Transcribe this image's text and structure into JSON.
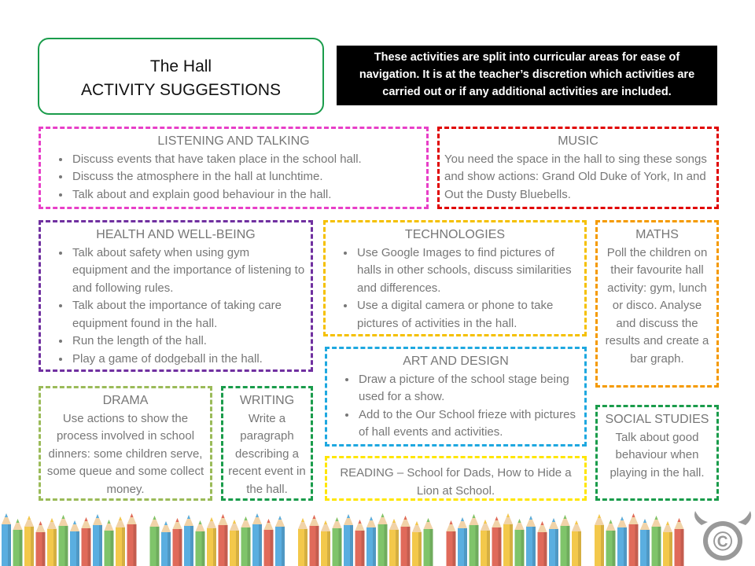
{
  "header": {
    "title": "The Hall",
    "subtitle": "ACTIVITY SUGGESTIONS",
    "note": "These activities are split into curricular areas for ease of navigation. It is at the teacher’s discretion which activities are carried out or if any additional activities are included."
  },
  "sections": [
    {
      "title": "LISTENING AND TALKING",
      "items": [
        "Discuss events that have taken place in the school hall.",
        "Discuss the atmosphere in the hall at lunchtime.",
        "Talk about and explain good behaviour in the hall."
      ]
    },
    {
      "title": "MUSIC",
      "text": "You need the space in the hall to sing these songs and show actions: Grand Old Duke of York, In and Out the Dusty Bluebells."
    },
    {
      "title": "HEALTH AND WELL-BEING",
      "items": [
        "Talk about safety when using gym equipment and the importance of listening to and following rules.",
        "Talk about the importance of taking care equipment found in the hall.",
        "Run the length of the hall.",
        "Play a game of dodgeball in the hall."
      ]
    },
    {
      "title": "TECHNOLOGIES",
      "items": [
        "Use Google Images to find pictures of halls in other schools, discuss similarities and differences.",
        "Use a digital camera or phone to take pictures of activities in the hall."
      ]
    },
    {
      "title": "MATHS",
      "text": "Poll the children on their favourite hall activity: gym, lunch or disco. Analyse and discuss the results and create a bar graph."
    },
    {
      "title": "ART AND DESIGN",
      "items": [
        "Draw a picture of the school stage being used for a show.",
        "Add to the Our School frieze with pictures of hall events and activities."
      ]
    },
    {
      "title": "DRAMA",
      "text": "Use actions to show the process involved in school dinners: some children serve, some queue and some collect money."
    },
    {
      "title": "WRITING",
      "text": "Write a paragraph describing a recent event in the hall."
    },
    {
      "title": "READING",
      "text": "– School for Dads, How to Hide a Lion at School."
    },
    {
      "title": "SOCIAL STUDIES",
      "text": "Talk about good behaviour when playing in the hall."
    }
  ],
  "logo": "©"
}
